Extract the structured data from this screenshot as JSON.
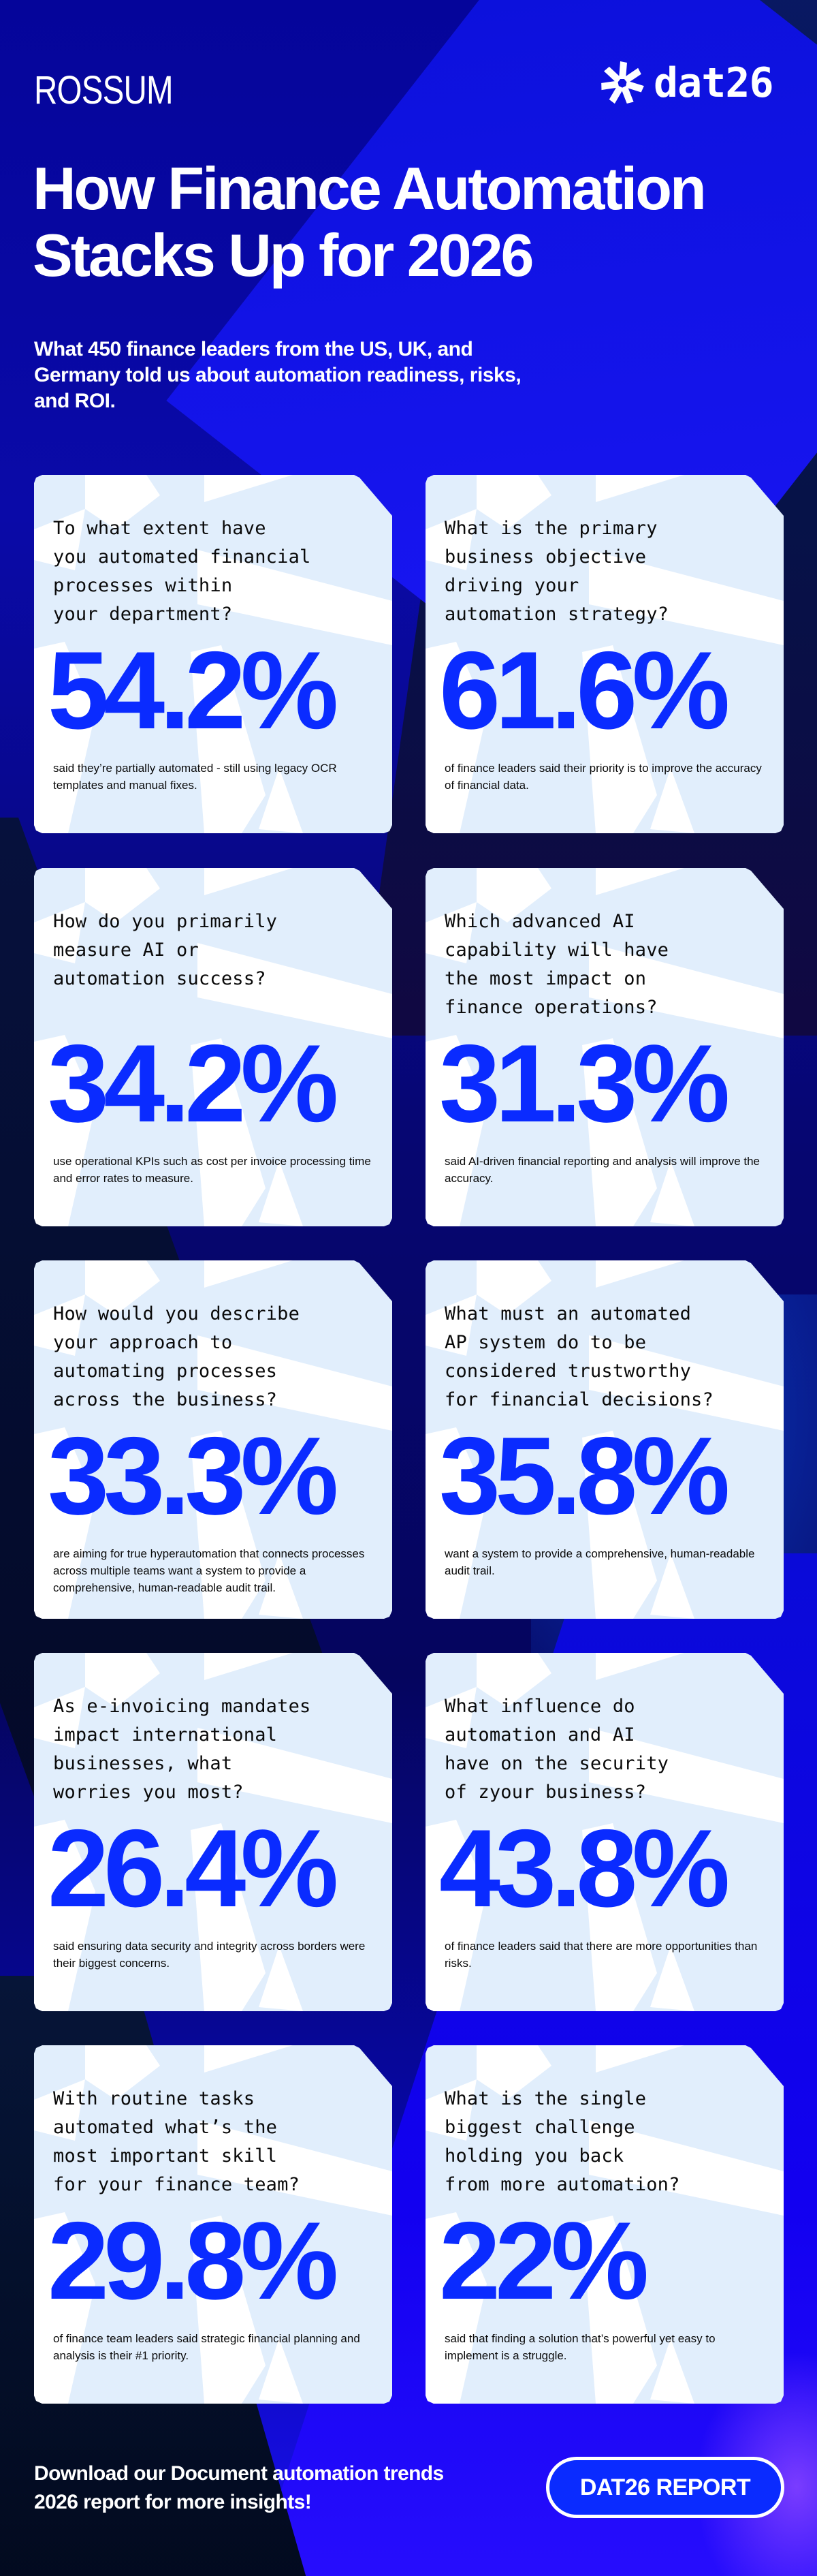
{
  "header": {
    "brand_left": "ROSSUM",
    "brand_right": "dat26",
    "title_line1": "How Finance Automation",
    "title_line2": "Stacks Up for 2026",
    "subtitle": "What 450 finance leaders from the US, UK, and Germany told us about automation readiness, risks, and ROI."
  },
  "colors": {
    "accent": "#0a2bff",
    "card_bg": "#e1eefc",
    "text_dark": "#0a0a0a",
    "background": "#05059a"
  },
  "cards": [
    {
      "question": "To what extent have\nyou automated financial\nprocesses within\nyour department?",
      "stat": "54.2%",
      "description": "said they’re partially automated - still using legacy OCR templates and manual fixes."
    },
    {
      "question": "What is the primary\nbusiness objective\ndriving your\nautomation strategy?",
      "stat": "61.6%",
      "description": "of finance leaders said their priority is to improve the accuracy of financial data."
    },
    {
      "question": "How do you primarily\nmeasure AI or\nautomation success?",
      "stat": "34.2%",
      "description": "use operational KPIs such as cost per invoice processing time and error rates to measure."
    },
    {
      "question": "Which advanced AI\ncapability will have\nthe most impact on\nfinance operations?",
      "stat": "31.3%",
      "description": "said AI-driven financial reporting and analysis will improve the accuracy."
    },
    {
      "question": "How would you describe\nyour approach to\nautomating processes\nacross the business?",
      "stat": "33.3%",
      "description": "are aiming for true hyperautomation that connects processes across multiple teams want a system to provide a comprehensive, human-readable audit trail."
    },
    {
      "question": "What must an automated\nAP system do to be\nconsidered trustworthy\nfor financial decisions?",
      "stat": "35.8%",
      "description": "want a system to provide a comprehensive, human-readable audit trail."
    },
    {
      "question": "As e-invoicing mandates\nimpact international\nbusinesses, what\nworries you most?",
      "stat": "26.4%",
      "description": "said ensuring data security and integrity across borders were their biggest concerns."
    },
    {
      "question": "What influence do\nautomation and AI\nhave on the security\nof zyour business?",
      "stat": "43.8%",
      "description": "of finance leaders said that there are more opportunities than risks."
    },
    {
      "question": "With routine tasks\nautomated what’s the\nmost important skill\nfor your finance team?",
      "stat": "29.8%",
      "description": "of finance team leaders said strategic financial planning and analysis is their #1 priority."
    },
    {
      "question": "What is the single\nbiggest challenge\nholding you back\nfrom more automation?",
      "stat": "22%",
      "description": "said that finding a solution that’s powerful yet easy to implement is a struggle."
    }
  ],
  "footer": {
    "cta_text": "Download our Document automation trends 2026 report for more insights!",
    "button_label": "DAT26 REPORT"
  },
  "icons": {
    "dat_logo": "pinwheel-star-icon"
  }
}
